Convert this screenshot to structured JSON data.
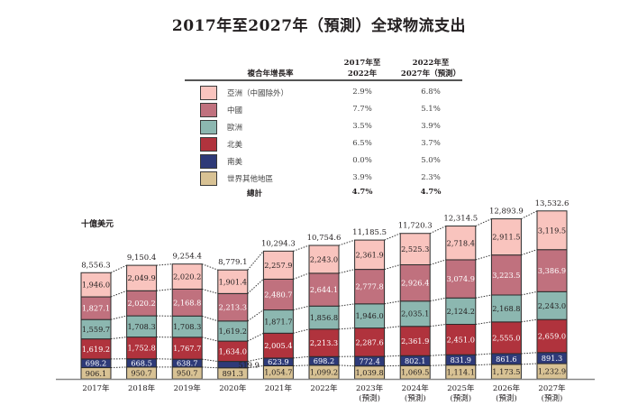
{
  "title": "2017年至2027年（預測）全球物流支出",
  "cagr_table": {
    "header_label": "複合年增長率",
    "col1_header": [
      "2017年至",
      "2022年"
    ],
    "col2_header": [
      "2022年至",
      "2027年（預測）"
    ],
    "rows": [
      {
        "region": "亞洲（中國除外）",
        "cagr_2017_2022": "2.9%",
        "cagr_2022_2027": "6.8%",
        "color": "#f9c4be"
      },
      {
        "region": "中國",
        "cagr_2017_2022": "7.7%",
        "cagr_2022_2027": "5.1%",
        "color": "#c0717e"
      },
      {
        "region": "歐洲",
        "cagr_2017_2022": "3.5%",
        "cagr_2022_2027": "3.9%",
        "color": "#8cb7b0"
      },
      {
        "region": "北美",
        "cagr_2017_2022": "6.5%",
        "cagr_2022_2027": "3.7%",
        "color": "#b0333d"
      },
      {
        "region": "南美",
        "cagr_2017_2022": "0.0%",
        "cagr_2022_2027": "5.0%",
        "color": "#2e3a78"
      },
      {
        "region": "世界其他地區",
        "cagr_2017_2022": "3.9%",
        "cagr_2022_2027": "2.3%",
        "color": "#d8c294"
      }
    ],
    "total": {
      "label": "總計",
      "cagr_2017_2022": "4.7%",
      "cagr_2022_2027": "4.7%"
    }
  },
  "chart_data": {
    "type": "bar",
    "stacked": true,
    "title": "2017年至2027年（預測）全球物流支出",
    "ylabel": "十億美元",
    "xlabel": "",
    "categories": [
      "2017年",
      "2018年",
      "2019年",
      "2020年",
      "2021年",
      "2022年",
      "2023年\n(預測)",
      "2024年\n(預測)",
      "2025年\n(預測)",
      "2026年\n(預測)",
      "2027年\n(預測)"
    ],
    "totals": [
      "8,556.3",
      "9,150.4",
      "9,254.4",
      "8,779.1",
      "10,294.3",
      "10,754.6",
      "11,185.5",
      "11,720.3",
      "12,314.5",
      "12,893.9",
      "13,532.6"
    ],
    "series": [
      {
        "name": "世界其他地區",
        "color": "#d8c294",
        "label_color": "#231f20",
        "values": [
          906.1,
          950.7,
          950.7,
          891.3,
          1054.7,
          1099.2,
          1039.8,
          1069.5,
          1114.1,
          1173.5,
          1232.9
        ]
      },
      {
        "name": "南美",
        "color": "#2e3a78",
        "label_color": "#ffffff",
        "values": [
          698.2,
          668.5,
          638.7,
          519.9,
          623.9,
          698.2,
          772.4,
          802.1,
          831.9,
          861.6,
          891.3
        ]
      },
      {
        "name": "北美",
        "color": "#b0333d",
        "label_color": "#ffffff",
        "values": [
          1619.2,
          1752.8,
          1767.7,
          1634.0,
          2005.4,
          2213.3,
          2287.6,
          2361.9,
          2451.0,
          2555.0,
          2659.0
        ]
      },
      {
        "name": "歐洲",
        "color": "#8cb7b0",
        "label_color": "#231f20",
        "values": [
          1559.7,
          1708.3,
          1708.3,
          1619.2,
          1871.7,
          1856.8,
          1946.0,
          2035.1,
          2124.2,
          2168.8,
          2243.0
        ]
      },
      {
        "name": "中國",
        "color": "#c0717e",
        "label_color": "#ffffff",
        "values": [
          1827.1,
          2020.2,
          2168.8,
          2213.3,
          2480.7,
          2644.1,
          2777.8,
          2926.4,
          3074.9,
          3223.5,
          3386.9
        ]
      },
      {
        "name": "亞洲（中國除外）",
        "color": "#f9c4be",
        "label_color": "#231f20",
        "values": [
          1946.0,
          2049.9,
          2020.2,
          1901.4,
          2257.9,
          2243.0,
          2361.9,
          2525.3,
          2718.4,
          2911.5,
          3119.5
        ]
      }
    ],
    "value_labels": [
      [
        "906.1",
        "950.7",
        "950.7",
        "891.3",
        "1,054.7",
        "1,099.2",
        "1,039.8",
        "1,069.5",
        "1,114.1",
        "1,173.5",
        "1,232.9"
      ],
      [
        "698.2",
        "668.5",
        "638.7",
        "519.9",
        "623.9",
        "698.2",
        "772.4",
        "802.1",
        "831.9",
        "861.6",
        "891.3"
      ],
      [
        "1,619.2",
        "1,752.8",
        "1,767.7",
        "1,634.0",
        "2,005.4",
        "2,213.3",
        "2,287.6",
        "2,361.9",
        "2,451.0",
        "2,555.0",
        "2,659.0"
      ],
      [
        "1,559.7",
        "1,708.3",
        "1,708.3",
        "1,619.2",
        "1,871.7",
        "1,856.8",
        "1,946.0",
        "2,035.1",
        "2,124.2",
        "2,168.8",
        "2,243.0"
      ],
      [
        "1,827.1",
        "2,020.2",
        "2,168.8",
        "2,213.3",
        "2,480.7",
        "2,644.1",
        "2,777.8",
        "2,926.4",
        "3,074.9",
        "3,223.5",
        "3,386.9"
      ],
      [
        "1,946.0",
        "2,049.9",
        "2,020.2",
        "1,901.4",
        "2,257.9",
        "2,243.0",
        "2,361.9",
        "2,525.3",
        "2,718.4",
        "2,911.5",
        "3,119.5"
      ]
    ],
    "grid": false,
    "legend": "top-center table"
  }
}
